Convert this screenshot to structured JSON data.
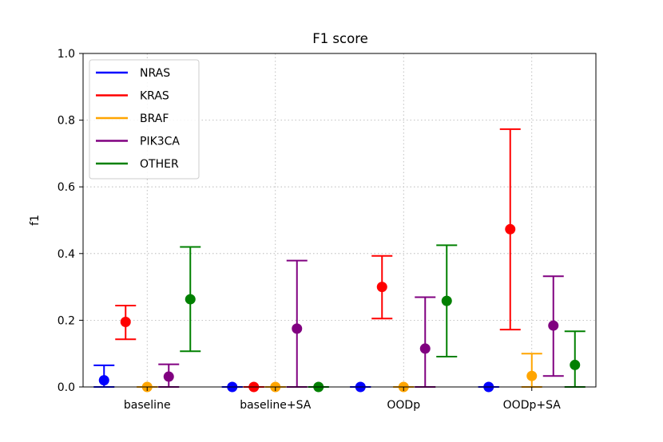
{
  "chart_data": {
    "type": "scatter",
    "title": "F1 score",
    "xlabel": "",
    "ylabel": "f1",
    "ylim": [
      0,
      1.0
    ],
    "yticks": [
      "0.0",
      "0.2",
      "0.4",
      "0.6",
      "0.8",
      "1.0"
    ],
    "grid": true,
    "legend_position": "top-left",
    "categories": [
      "baseline",
      "baseline+SA",
      "OODp",
      "OODp+SA"
    ],
    "series": [
      {
        "name": "NRAS",
        "color": "#0000ff",
        "values": [
          0.02,
          0.0,
          0.0,
          0.0
        ],
        "lower": [
          0.0,
          0.0,
          0.0,
          0.0
        ],
        "upper": [
          0.065,
          0.0,
          0.0,
          0.0
        ]
      },
      {
        "name": "KRAS",
        "color": "#ff0000",
        "values": [
          0.195,
          0.0,
          0.3,
          0.473
        ],
        "lower": [
          0.143,
          0.0,
          0.205,
          0.172
        ],
        "upper": [
          0.244,
          0.0,
          0.393,
          0.773
        ]
      },
      {
        "name": "BRAF",
        "color": "#ffa500",
        "values": [
          0.0,
          0.0,
          0.0,
          0.033
        ],
        "lower": [
          0.0,
          0.0,
          0.0,
          0.0
        ],
        "upper": [
          0.0,
          0.0,
          0.0,
          0.1
        ]
      },
      {
        "name": "PIK3CA",
        "color": "#800080",
        "values": [
          0.031,
          0.175,
          0.115,
          0.184
        ],
        "lower": [
          0.0,
          0.0,
          0.0,
          0.033
        ],
        "upper": [
          0.068,
          0.379,
          0.269,
          0.332
        ]
      },
      {
        "name": "OTHER",
        "color": "#008000",
        "values": [
          0.263,
          0.0,
          0.258,
          0.066
        ],
        "lower": [
          0.107,
          0.0,
          0.091,
          0.0
        ],
        "upper": [
          0.42,
          0.0,
          0.425,
          0.167
        ]
      }
    ]
  }
}
